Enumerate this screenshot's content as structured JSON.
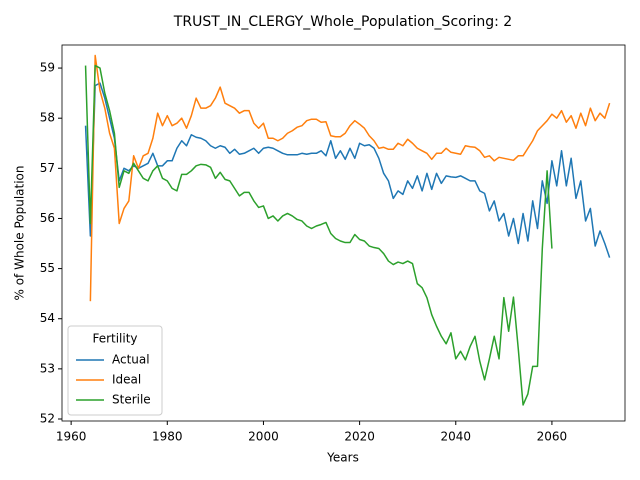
{
  "chart_data": {
    "type": "line",
    "title": "TRUST_IN_CLERGY_Whole_Population_Scoring: 2",
    "x_label": "Years",
    "y_label": "% of Whole Population",
    "x": [
      1963,
      1964,
      1965,
      1966,
      1967,
      1968,
      1969,
      1970,
      1971,
      1972,
      1973,
      1974,
      1975,
      1976,
      1977,
      1978,
      1979,
      1980,
      1981,
      1982,
      1983,
      1984,
      1985,
      1986,
      1987,
      1988,
      1989,
      1990,
      1991,
      1992,
      1993,
      1994,
      1995,
      1996,
      1997,
      1998,
      1999,
      2000,
      2001,
      2002,
      2003,
      2004,
      2005,
      2006,
      2007,
      2008,
      2009,
      2010,
      2011,
      2012,
      2013,
      2014,
      2015,
      2016,
      2017,
      2018,
      2019,
      2020,
      2021,
      2022,
      2023,
      2024,
      2025,
      2026,
      2027,
      2028,
      2029,
      2030,
      2031,
      2032,
      2033,
      2034,
      2035,
      2036,
      2037,
      2038,
      2039,
      2040,
      2041,
      2042,
      2043,
      2044,
      2045,
      2046,
      2047,
      2048,
      2049,
      2050,
      2051,
      2052,
      2053,
      2054,
      2055,
      2056,
      2057,
      2058,
      2059,
      2060,
      2061,
      2062,
      2063,
      2064,
      2065,
      2066,
      2067,
      2068,
      2069,
      2070,
      2071,
      2072
    ],
    "series": [
      {
        "name": "Actual",
        "color": "#1f77b4",
        "values": [
          57.85,
          55.65,
          58.65,
          58.7,
          58.4,
          58.0,
          57.6,
          56.75,
          57.0,
          56.95,
          57.05,
          57.0,
          57.05,
          57.1,
          57.3,
          57.05,
          57.05,
          57.15,
          57.15,
          57.4,
          57.55,
          57.45,
          57.67,
          57.62,
          57.6,
          57.55,
          57.45,
          57.4,
          57.45,
          57.42,
          57.3,
          57.38,
          57.28,
          57.3,
          57.35,
          57.4,
          57.3,
          57.4,
          57.42,
          57.4,
          57.35,
          57.3,
          57.27,
          57.27,
          57.27,
          57.3,
          57.28,
          57.3,
          57.3,
          57.35,
          57.25,
          57.55,
          57.2,
          57.35,
          57.18,
          57.4,
          57.2,
          57.5,
          57.45,
          57.47,
          57.4,
          57.2,
          56.9,
          56.75,
          56.4,
          56.55,
          56.48,
          56.75,
          56.6,
          56.85,
          56.55,
          56.9,
          56.58,
          56.9,
          56.7,
          56.85,
          56.83,
          56.82,
          56.85,
          56.8,
          56.75,
          56.75,
          56.55,
          56.5,
          56.15,
          56.35,
          55.95,
          56.1,
          55.65,
          56.0,
          55.5,
          56.1,
          55.55,
          56.35,
          55.8,
          56.75,
          56.3,
          57.15,
          56.65,
          57.35,
          56.65,
          57.2,
          56.4,
          56.75,
          55.95,
          56.2,
          55.45,
          55.75,
          55.5,
          55.22
        ]
      },
      {
        "name": "Ideal",
        "color": "#ff7f0e",
        "values": [
          null,
          54.35,
          59.25,
          58.55,
          58.2,
          57.7,
          57.4,
          55.9,
          56.2,
          56.35,
          57.25,
          57.0,
          57.25,
          57.3,
          57.6,
          58.1,
          57.85,
          58.05,
          57.85,
          57.9,
          58.0,
          57.8,
          58.05,
          58.4,
          58.2,
          58.2,
          58.25,
          58.4,
          58.62,
          58.3,
          58.25,
          58.2,
          58.1,
          58.15,
          58.15,
          57.9,
          57.8,
          57.9,
          57.6,
          57.6,
          57.55,
          57.6,
          57.7,
          57.75,
          57.82,
          57.85,
          57.95,
          57.98,
          57.98,
          57.92,
          57.93,
          57.65,
          57.63,
          57.63,
          57.7,
          57.85,
          57.95,
          57.88,
          57.8,
          57.65,
          57.55,
          57.4,
          57.42,
          57.38,
          57.38,
          57.5,
          57.45,
          57.58,
          57.5,
          57.4,
          57.35,
          57.3,
          57.18,
          57.3,
          57.3,
          57.4,
          57.32,
          57.3,
          57.28,
          57.45,
          57.43,
          57.42,
          57.35,
          57.22,
          57.25,
          57.15,
          57.22,
          57.2,
          57.18,
          57.16,
          57.25,
          57.25,
          57.4,
          57.55,
          57.75,
          57.85,
          57.95,
          58.08,
          58.0,
          58.15,
          57.92,
          58.05,
          57.8,
          58.1,
          57.85,
          58.2,
          57.95,
          58.1,
          58.0,
          58.3
        ]
      },
      {
        "name": "Sterile",
        "color": "#2ca02c",
        "values": [
          59.05,
          55.9,
          59.05,
          59.0,
          58.5,
          58.15,
          57.7,
          56.62,
          56.95,
          56.9,
          57.1,
          56.95,
          56.8,
          56.75,
          56.95,
          57.05,
          56.8,
          56.75,
          56.6,
          56.55,
          56.88,
          56.88,
          56.95,
          57.05,
          57.08,
          57.07,
          57.02,
          56.8,
          56.92,
          56.78,
          56.75,
          56.6,
          56.45,
          56.52,
          56.52,
          56.35,
          56.22,
          56.25,
          56.0,
          56.05,
          55.95,
          56.05,
          56.1,
          56.05,
          55.98,
          55.95,
          55.85,
          55.8,
          55.85,
          55.88,
          55.92,
          55.7,
          55.6,
          55.55,
          55.52,
          55.52,
          55.68,
          55.58,
          55.55,
          55.45,
          55.42,
          55.4,
          55.3,
          55.15,
          55.08,
          55.13,
          55.1,
          55.15,
          55.1,
          54.7,
          54.62,
          54.42,
          54.08,
          53.85,
          53.65,
          53.5,
          53.72,
          53.2,
          53.35,
          53.18,
          53.45,
          53.65,
          53.15,
          52.78,
          53.2,
          53.65,
          53.2,
          54.42,
          53.75,
          54.43,
          53.4,
          52.28,
          52.5,
          53.05,
          53.05,
          55.4,
          56.95,
          55.4,
          null,
          null,
          null,
          null,
          null,
          null,
          null,
          null,
          null,
          null,
          null,
          null
        ]
      }
    ],
    "xlim": [
      1958.1,
      2075.2
    ],
    "ylim": [
      51.96,
      59.46
    ],
    "xticks": [
      1960,
      1980,
      2000,
      2020,
      2040,
      2060
    ],
    "yticks": [
      52,
      53,
      54,
      55,
      56,
      57,
      58,
      59
    ],
    "grid": false,
    "legend_title": "Fertility",
    "legend_loc": "lower left"
  }
}
